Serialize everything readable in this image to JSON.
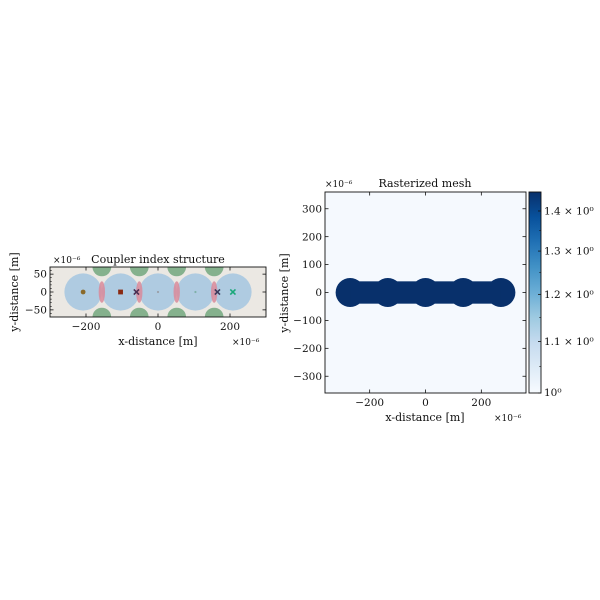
{
  "chart_data": [
    {
      "type": "scatter",
      "title": "Coupler index structure",
      "xlabel": "x-distance [m]",
      "ylabel": "y-distance [m]",
      "xscale_label": "×10⁻⁶",
      "yscale_label": "×10⁻⁶",
      "xlim": [
        -300,
        300
      ],
      "ylim": [
        -70,
        70
      ],
      "xticks": [
        {
          "value": -200,
          "label": "−200"
        },
        {
          "value": 0,
          "label": "0"
        },
        {
          "value": 200,
          "label": "200"
        }
      ],
      "yticks": [
        {
          "value": 50,
          "label": "50"
        },
        {
          "value": 0,
          "label": "0"
        },
        {
          "value": -50,
          "label": "−50"
        }
      ],
      "background_color": "#ebe8e3",
      "cores": [
        {
          "cx": -208,
          "cy": 0,
          "r": 52
        },
        {
          "cx": -104,
          "cy": 0,
          "r": 52
        },
        {
          "cx": 0,
          "cy": 0,
          "r": 52
        },
        {
          "cx": 104,
          "cy": 0,
          "r": 52
        },
        {
          "cx": 208,
          "cy": 0,
          "r": 52
        }
      ],
      "core_color": "#a9c8e0",
      "overlap_color": "#d9899a",
      "cusp_color": "#73a77e",
      "markers": [
        {
          "x": -208,
          "y": 0,
          "symbol": "circle",
          "color": "#8a6a2a"
        },
        {
          "x": -104,
          "y": 0,
          "symbol": "square",
          "color": "#8a2a12"
        },
        {
          "x": -60,
          "y": 0,
          "symbol": "cross",
          "color": "#4a2f52"
        },
        {
          "x": 0,
          "y": 0,
          "symbol": "dot",
          "color": "#9aa0a8"
        },
        {
          "x": 104,
          "y": 0,
          "symbol": "dot",
          "color": "#7fb0a8"
        },
        {
          "x": 165,
          "y": 0,
          "symbol": "cross",
          "color": "#3a3a5c"
        },
        {
          "x": 208,
          "y": 0,
          "symbol": "cross",
          "color": "#1aa87a"
        }
      ]
    },
    {
      "type": "heatmap",
      "title": "Rasterized mesh",
      "xlabel": "x-distance [m]",
      "ylabel": "y-distance [m]",
      "xscale_label": "×10⁻⁶",
      "yscale_label": "×10⁻⁶",
      "xlim": [
        -360,
        360
      ],
      "ylim": [
        -360,
        360
      ],
      "xticks": [
        {
          "value": -200,
          "label": "−200"
        },
        {
          "value": 0,
          "label": "0"
        },
        {
          "value": 200,
          "label": "200"
        }
      ],
      "yticks": [
        {
          "value": 300,
          "label": "300"
        },
        {
          "value": 200,
          "label": "200"
        },
        {
          "value": 100,
          "label": "100"
        },
        {
          "value": 0,
          "label": "0"
        },
        {
          "value": -100,
          "label": "−100"
        },
        {
          "value": -200,
          "label": "−200"
        },
        {
          "value": -300,
          "label": "−300"
        }
      ],
      "background_value": 1.0,
      "structure_value": 1.45,
      "background_color": "#f5f9fe",
      "structure_color": "#08306b",
      "cores": [
        {
          "cx": -270,
          "cy": 0,
          "r": 52
        },
        {
          "cx": -135,
          "cy": 0,
          "r": 52
        },
        {
          "cx": 0,
          "cy": 0,
          "r": 52
        },
        {
          "cx": 135,
          "cy": 0,
          "r": 52
        },
        {
          "cx": 270,
          "cy": 0,
          "r": 52
        }
      ],
      "colorbar": {
        "scale": "log",
        "min": 1.0,
        "max": 1.45,
        "colors": [
          "#f7fbff",
          "#deebf7",
          "#c6dbef",
          "#9ecae1",
          "#6baed6",
          "#4292c6",
          "#2171b5",
          "#08519c",
          "#08306b"
        ],
        "ticks": [
          {
            "value": 1.0,
            "label": "10⁰"
          },
          {
            "value": 1.1,
            "label": "1.1 × 10⁰"
          },
          {
            "value": 1.2,
            "label": "1.2 × 10⁰"
          },
          {
            "value": 1.3,
            "label": "1.3 × 10⁰"
          },
          {
            "value": 1.4,
            "label": "1.4 × 10⁰"
          }
        ]
      }
    }
  ]
}
